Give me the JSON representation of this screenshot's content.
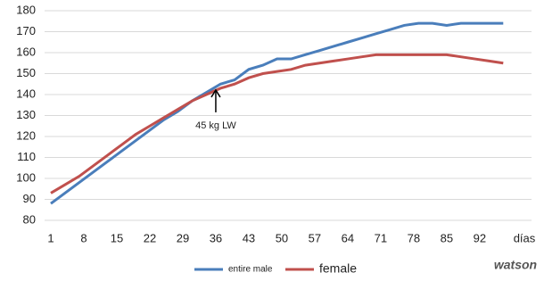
{
  "chart_data": {
    "type": "line",
    "x": [
      1,
      4,
      7,
      10,
      13,
      16,
      19,
      22,
      25,
      28,
      31,
      34,
      37,
      40,
      43,
      46,
      49,
      52,
      55,
      58,
      61,
      64,
      67,
      70,
      73,
      76,
      79,
      82,
      85,
      88,
      91,
      94,
      97
    ],
    "series": [
      {
        "name": "entire male",
        "color": "#4a7ebb",
        "values": [
          88,
          93,
          98,
          103,
          108,
          113,
          118,
          123,
          128,
          132,
          137,
          141,
          145,
          147,
          152,
          154,
          157,
          157,
          159,
          161,
          163,
          165,
          167,
          169,
          171,
          173,
          174,
          174,
          173,
          174,
          174,
          174,
          174
        ]
      },
      {
        "name": "female",
        "color": "#c0504d",
        "values": [
          93,
          97,
          101,
          106,
          111,
          116,
          121,
          125,
          129,
          133,
          137,
          140,
          143,
          145,
          148,
          150,
          151,
          152,
          154,
          155,
          156,
          157,
          158,
          159,
          159,
          159,
          159,
          159,
          159,
          158,
          157,
          156,
          155
        ]
      }
    ],
    "xlim": [
      1,
      103
    ],
    "xticks": [
      1,
      8,
      15,
      22,
      29,
      36,
      43,
      50,
      57,
      64,
      71,
      78,
      85,
      92
    ],
    "x_label": "días",
    "ylim": [
      80,
      180
    ],
    "yticks": [
      80,
      90,
      100,
      110,
      120,
      130,
      140,
      150,
      160,
      170,
      180
    ],
    "grid": true,
    "annotation": {
      "text": "45 kg LW",
      "x": 36,
      "y": 143
    },
    "logo_text": "watson"
  }
}
